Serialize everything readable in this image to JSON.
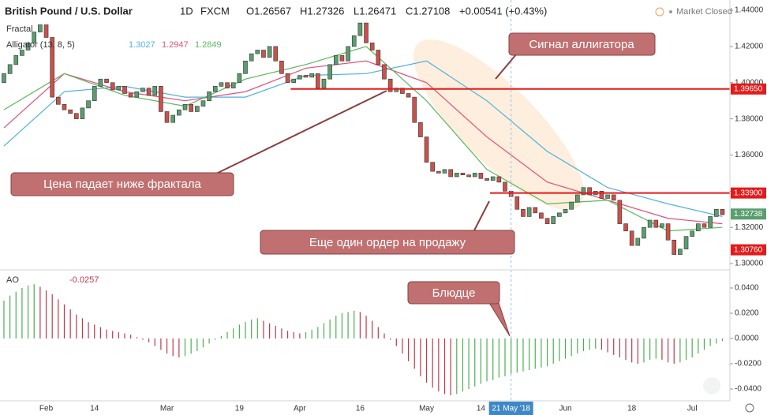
{
  "header": {
    "symbol": "British Pound / U.S. Dollar",
    "interval": "1D",
    "source": "FXCM",
    "open": "O1.26567",
    "high": "H1.27326",
    "low": "L1.26471",
    "close": "C1.27108",
    "change": "+0.00541 (+0.43%)",
    "status": "Market Closed"
  },
  "indicators": {
    "fractal": "Fractal",
    "alligator": {
      "label": "Alligator (13, 8, 5)",
      "values": [
        "1.3027",
        "1.2947",
        "1.2849"
      ]
    },
    "ao": {
      "label": "AO",
      "value": "-0.0257"
    }
  },
  "annotations": [
    "Сигнал аллигатора",
    "Цена падает ниже фрактала",
    "Еще один ордер на продажу",
    "Блюдце"
  ],
  "chart_data": [
    {
      "type": "candlestick",
      "up_color": "#5a9e6f",
      "down_color": "#c9524a",
      "xlim": [
        -0.65,
        120.25
      ],
      "ylim": [
        1.2974,
        1.4457
      ],
      "crosshair_x": 84,
      "xticks": [
        {
          "value": 7,
          "label": "Feb"
        },
        {
          "value": 15,
          "label": "14"
        },
        {
          "value": 27,
          "label": "Mar"
        },
        {
          "value": 39,
          "label": "19"
        },
        {
          "value": 49,
          "label": "Apr"
        },
        {
          "value": 59,
          "label": "16"
        },
        {
          "value": 70,
          "label": "May"
        },
        {
          "value": 79,
          "label": "14"
        },
        {
          "value": 84,
          "label": "21 May '18"
        },
        {
          "value": 93,
          "label": "Jun"
        },
        {
          "value": 104,
          "label": "18"
        },
        {
          "value": 114,
          "label": "Jul"
        }
      ],
      "yticks": [
        {
          "value": 1.44,
          "label": "1.44000"
        },
        {
          "value": 1.42,
          "label": "1.42000"
        },
        {
          "value": 1.4,
          "label": "1.40000"
        },
        {
          "value": 1.38,
          "label": "1.38000"
        },
        {
          "value": 1.36,
          "label": "1.36000"
        },
        {
          "value": 1.34,
          "label": "1.34000"
        },
        {
          "value": 1.32,
          "label": "1.32000"
        },
        {
          "value": 1.3,
          "label": "1.30000"
        }
      ],
      "open": [
        1.4,
        1.405,
        1.41,
        1.415,
        1.418,
        1.422,
        1.428,
        1.432,
        1.425,
        1.392,
        1.388,
        1.385,
        1.383,
        1.38,
        1.386,
        1.39,
        1.398,
        1.402,
        1.4,
        1.396,
        1.398,
        1.394,
        1.392,
        1.395,
        1.397,
        1.393,
        1.398,
        1.384,
        1.378,
        1.382,
        1.385,
        1.388,
        1.384,
        1.387,
        1.39,
        1.395,
        1.398,
        1.4,
        1.397,
        1.4,
        1.405,
        1.412,
        1.416,
        1.418,
        1.414,
        1.42,
        1.412,
        1.405,
        1.4,
        1.402,
        1.404,
        1.403,
        1.405,
        1.397,
        1.402,
        1.41,
        1.415,
        1.412,
        1.42,
        1.426,
        1.433,
        1.422,
        1.418,
        1.41,
        1.402,
        1.395,
        1.397,
        1.394,
        1.392,
        1.378,
        1.37,
        1.356,
        1.351,
        1.35,
        1.352,
        1.348,
        1.35,
        1.349,
        1.348,
        1.35,
        1.347,
        1.346,
        1.348,
        1.345,
        1.34,
        1.337,
        1.33,
        1.326,
        1.331,
        1.328,
        1.325,
        1.322,
        1.326,
        1.328,
        1.33,
        1.334,
        1.338,
        1.342,
        1.338,
        1.34,
        1.336,
        1.338,
        1.335,
        1.322,
        1.318,
        1.31,
        1.314,
        1.32,
        1.324,
        1.32,
        1.322,
        1.313,
        1.305,
        1.308,
        1.315,
        1.318,
        1.322,
        1.32,
        1.326,
        1.33
      ],
      "close": [
        1.405,
        1.41,
        1.415,
        1.418,
        1.422,
        1.428,
        1.432,
        1.425,
        1.392,
        1.388,
        1.385,
        1.383,
        1.38,
        1.386,
        1.39,
        1.398,
        1.402,
        1.4,
        1.396,
        1.398,
        1.394,
        1.392,
        1.395,
        1.397,
        1.393,
        1.398,
        1.384,
        1.378,
        1.382,
        1.385,
        1.388,
        1.384,
        1.387,
        1.39,
        1.395,
        1.398,
        1.4,
        1.397,
        1.4,
        1.405,
        1.412,
        1.416,
        1.418,
        1.414,
        1.42,
        1.412,
        1.405,
        1.4,
        1.402,
        1.404,
        1.403,
        1.405,
        1.397,
        1.402,
        1.41,
        1.415,
        1.412,
        1.42,
        1.426,
        1.433,
        1.422,
        1.418,
        1.41,
        1.402,
        1.395,
        1.397,
        1.394,
        1.392,
        1.378,
        1.37,
        1.356,
        1.351,
        1.35,
        1.352,
        1.348,
        1.35,
        1.349,
        1.348,
        1.35,
        1.347,
        1.346,
        1.348,
        1.345,
        1.34,
        1.337,
        1.33,
        1.326,
        1.331,
        1.328,
        1.325,
        1.322,
        1.326,
        1.328,
        1.33,
        1.334,
        1.338,
        1.342,
        1.338,
        1.34,
        1.336,
        1.338,
        1.335,
        1.322,
        1.318,
        1.31,
        1.314,
        1.32,
        1.324,
        1.32,
        1.322,
        1.313,
        1.305,
        1.308,
        1.315,
        1.318,
        1.322,
        1.32,
        1.326,
        1.33,
        1.327
      ],
      "lines": [
        {
          "color": "#4fb1e0",
          "x": [
            0,
            10,
            20,
            30,
            40,
            50,
            60,
            70,
            80,
            90,
            100,
            110,
            119
          ],
          "values": [
            1.365,
            1.395,
            1.398,
            1.392,
            1.392,
            1.404,
            1.405,
            1.412,
            1.39,
            1.362,
            1.342,
            1.333,
            1.326
          ]
        },
        {
          "color": "#e0507a",
          "x": [
            0,
            10,
            20,
            30,
            40,
            50,
            60,
            70,
            80,
            90,
            100,
            110,
            119
          ],
          "values": [
            1.375,
            1.405,
            1.395,
            1.39,
            1.395,
            1.408,
            1.412,
            1.4,
            1.37,
            1.345,
            1.335,
            1.325,
            1.322
          ]
        },
        {
          "color": "#5cb85c",
          "x": [
            0,
            10,
            20,
            30,
            40,
            50,
            60,
            70,
            80,
            90,
            100,
            110,
            119
          ],
          "values": [
            1.385,
            1.405,
            1.393,
            1.387,
            1.402,
            1.41,
            1.42,
            1.39,
            1.352,
            1.333,
            1.335,
            1.318,
            1.32
          ]
        }
      ],
      "levels": [
        {
          "value": 1.3965,
          "label": "1.39650",
          "color": "#e31b1b",
          "start": 47.5,
          "line": true
        },
        {
          "value": 1.339,
          "label": "1.33900",
          "color": "#e31b1b",
          "start": 80.5,
          "line": true
        },
        {
          "value": 1.32738,
          "label": "1.32738",
          "color": "#5a9e6f",
          "start": 119,
          "line": false
        },
        {
          "value": 1.3076,
          "label": "1.30760",
          "color": "#e31b1b",
          "start": 119,
          "line": false
        }
      ]
    },
    {
      "type": "bar",
      "up_color": "#4caf50",
      "down_color": "#c0394b",
      "xlim": [
        -0.65,
        120.25
      ],
      "ylim": [
        -0.0475,
        0.0525
      ],
      "yticks": [
        {
          "value": 0.04,
          "label": "0.0400"
        },
        {
          "value": 0.02,
          "label": "0.0200"
        },
        {
          "value": 0,
          "label": "0.0000"
        },
        {
          "value": -0.02,
          "label": "-0.0200"
        },
        {
          "value": -0.04,
          "label": "-0.0400"
        }
      ],
      "values": [
        0.03,
        0.034,
        0.037,
        0.04,
        0.042,
        0.043,
        0.041,
        0.038,
        0.035,
        0.031,
        0.027,
        0.023,
        0.019,
        0.016,
        0.013,
        0.011,
        0.009,
        0.007,
        0.006,
        0.005,
        0.004,
        0.003,
        0.001,
        -0.001,
        -0.003,
        -0.006,
        -0.009,
        -0.012,
        -0.014,
        -0.015,
        -0.014,
        -0.012,
        -0.01,
        -0.007,
        -0.004,
        -0.001,
        0.002,
        0.005,
        0.008,
        0.011,
        0.013,
        0.015,
        0.016,
        0.014,
        0.012,
        0.01,
        0.008,
        0.006,
        0.005,
        0.004,
        0.005,
        0.007,
        0.009,
        0.012,
        0.015,
        0.018,
        0.02,
        0.021,
        0.022,
        0.021,
        0.018,
        0.014,
        0.009,
        0.004,
        -0.001,
        -0.006,
        -0.012,
        -0.018,
        -0.024,
        -0.03,
        -0.035,
        -0.039,
        -0.042,
        -0.044,
        -0.045,
        -0.044,
        -0.042,
        -0.04,
        -0.038,
        -0.036,
        -0.034,
        -0.033,
        -0.031,
        -0.03,
        -0.028,
        -0.027,
        -0.026,
        -0.025,
        -0.024,
        -0.023,
        -0.022,
        -0.02,
        -0.018,
        -0.016,
        -0.014,
        -0.012,
        -0.01,
        -0.009,
        -0.008,
        -0.009,
        -0.011,
        -0.013,
        -0.015,
        -0.017,
        -0.019,
        -0.02,
        -0.019,
        -0.017,
        -0.016,
        -0.017,
        -0.019,
        -0.02,
        -0.019,
        -0.017,
        -0.015,
        -0.012,
        -0.009,
        -0.006,
        -0.004,
        -0.002
      ]
    }
  ]
}
